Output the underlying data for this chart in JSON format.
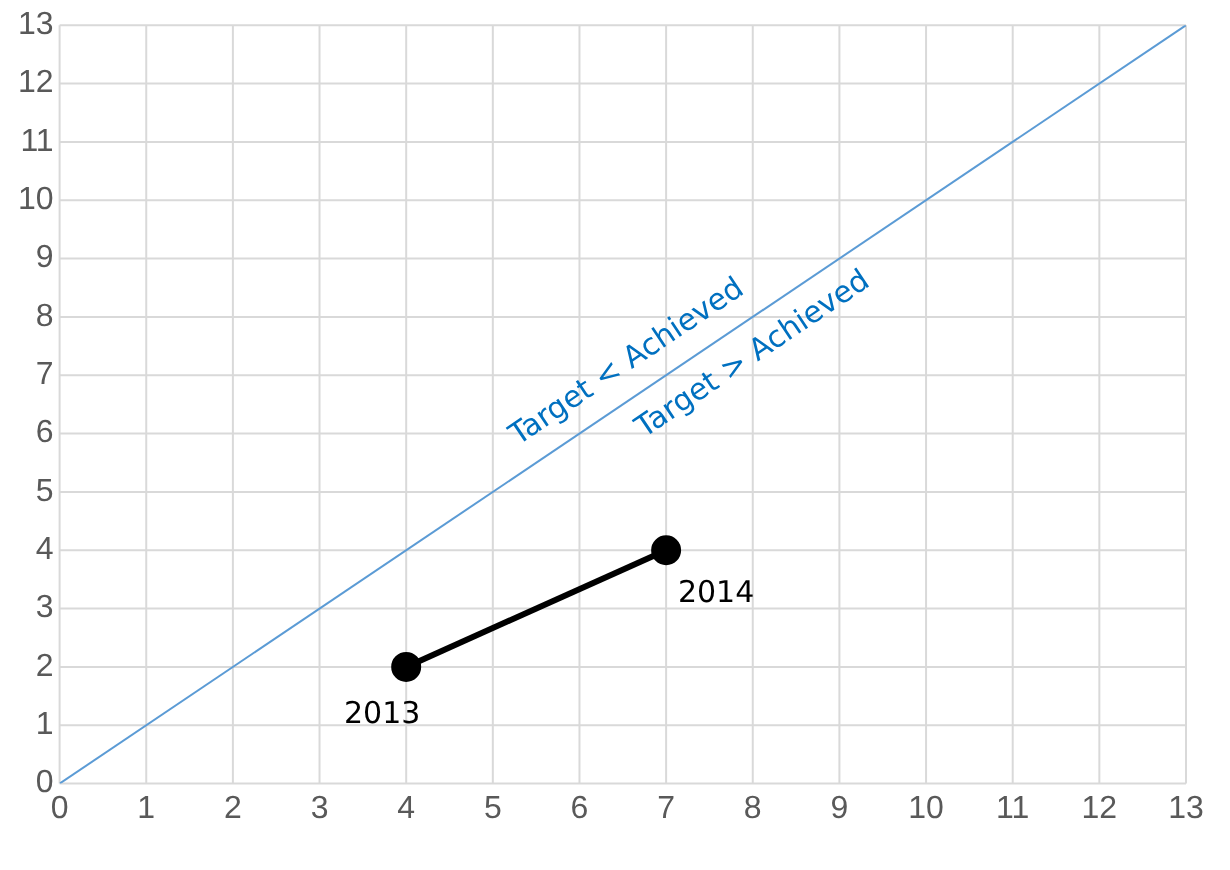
{
  "chart_data": {
    "type": "line",
    "x": [
      4,
      7
    ],
    "series": [
      {
        "color": "#000000",
        "values": [
          2,
          4
        ],
        "marker": "circle"
      },
      {
        "type": "line",
        "color": "#5b9bd5",
        "x": [
          0,
          13
        ],
        "values": [
          0,
          13
        ],
        "marker": "none"
      }
    ],
    "xlim": [
      0,
      13
    ],
    "ylim": [
      0,
      13
    ],
    "xticks": [
      0,
      1,
      2,
      3,
      4,
      5,
      6,
      7,
      8,
      9,
      10,
      11,
      12,
      13
    ],
    "yticks": [
      0,
      1,
      2,
      3,
      4,
      5,
      6,
      7,
      8,
      9,
      10,
      11,
      12,
      13
    ],
    "grid": true,
    "legend": false,
    "annotations": [
      {
        "text": "2013",
        "x": 4,
        "y": 2
      },
      {
        "text": "2014",
        "x": 7,
        "y": 4
      },
      "Target < Achieved",
      "Target > Achieved"
    ]
  }
}
